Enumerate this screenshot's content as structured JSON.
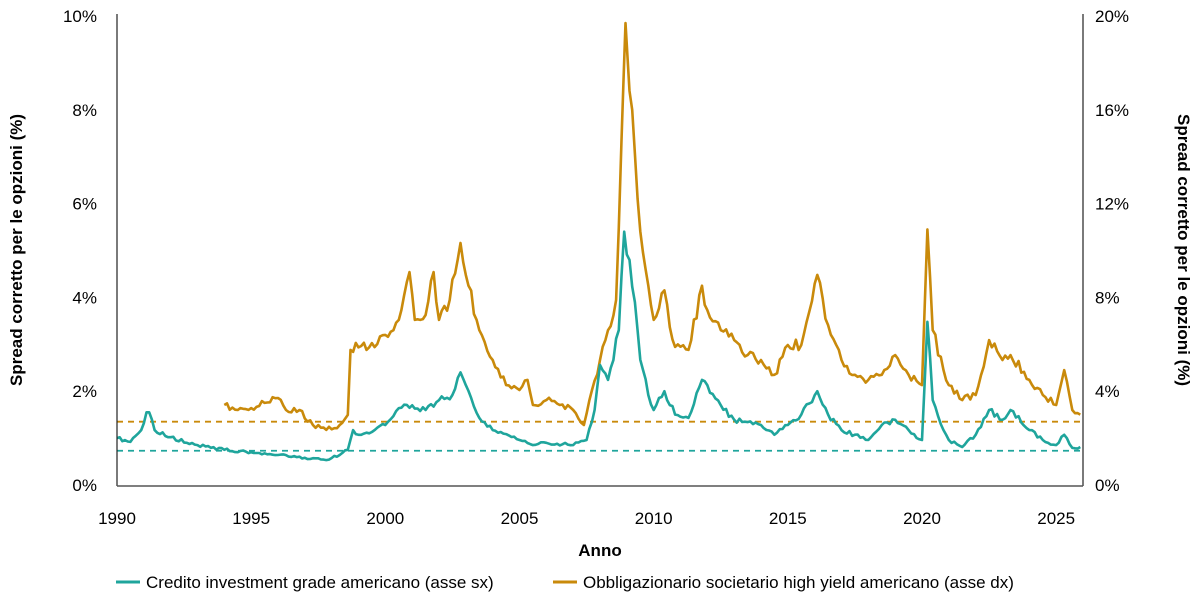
{
  "chart_data": {
    "type": "line",
    "xlabel": "Anno",
    "ylabel_left": "Spread corretto per le opzioni (%)",
    "ylabel_right": "Spread corretto per le opzioni (%)",
    "xlim": [
      1990,
      2026
    ],
    "ylim_left": [
      0,
      10
    ],
    "ylim_right": [
      0,
      20
    ],
    "x_ticks": [
      "1990",
      "1995",
      "2000",
      "2005",
      "2010",
      "2015",
      "2020",
      "2025"
    ],
    "y_ticks_left": [
      "0%",
      "2%",
      "4%",
      "6%",
      "8%",
      "10%"
    ],
    "y_ticks_right": [
      "0%",
      "4%",
      "8%",
      "12%",
      "16%",
      "20%"
    ],
    "grid": false,
    "legend_position": "bottom",
    "series": [
      {
        "name": "Credito investment grade americano (asse sx)",
        "axis": "left",
        "color": "#1fa59c",
        "reference_dashed": 0.73,
        "x": [
          1990.0,
          1990.5,
          1990.9,
          1991.1,
          1991.2,
          1991.4,
          1992,
          1993,
          1994,
          1995,
          1996,
          1997,
          1997.8,
          1998.3,
          1998.6,
          1998.8,
          1999,
          1999.5,
          2000,
          2000.5,
          2001,
          2001.5,
          2002,
          2002.5,
          2002.8,
          2003,
          2003.5,
          2004,
          2005,
          2005.5,
          2006,
          2007,
          2007.5,
          2007.8,
          2008,
          2008.3,
          2008.7,
          2008.9,
          2009.1,
          2009.3,
          2009.5,
          2009.8,
          2010,
          2010.4,
          2010.8,
          2011.3,
          2011.8,
          2012,
          2012.5,
          2013,
          2014,
          2014.5,
          2015,
          2015.5,
          2016.1,
          2016.5,
          2017,
          2018,
          2018.5,
          2019,
          2019.5,
          2020,
          2020.2,
          2020.4,
          2020.8,
          2021,
          2021.5,
          2022,
          2022.5,
          2023,
          2023.3,
          2024,
          2024.5,
          2025,
          2025.3,
          2025.6,
          2025.9
        ],
        "y": [
          1.0,
          0.92,
          1.17,
          1.55,
          1.55,
          1.17,
          1.02,
          0.85,
          0.75,
          0.7,
          0.64,
          0.58,
          0.53,
          0.64,
          0.75,
          1.17,
          1.07,
          1.13,
          1.28,
          1.64,
          1.7,
          1.6,
          1.81,
          1.92,
          2.4,
          2.13,
          1.43,
          1.17,
          0.96,
          0.85,
          0.9,
          0.85,
          0.96,
          1.6,
          2.56,
          2.24,
          3.3,
          5.4,
          4.8,
          3.9,
          2.67,
          1.92,
          1.6,
          2.0,
          1.5,
          1.43,
          2.24,
          2.13,
          1.7,
          1.39,
          1.28,
          1.07,
          1.28,
          1.5,
          2.0,
          1.5,
          1.17,
          0.96,
          1.28,
          1.39,
          1.17,
          0.96,
          3.48,
          1.81,
          1.17,
          0.96,
          0.81,
          1.07,
          1.6,
          1.39,
          1.6,
          1.17,
          0.96,
          0.85,
          1.07,
          0.79,
          0.81
        ]
      },
      {
        "name": "Obbligazionario societario high yield americano (asse dx)",
        "axis": "right",
        "color": "#c98a0b",
        "reference_dashed": 2.7,
        "x": [
          1994.0,
          1994.5,
          1995,
          1995.5,
          1996,
          1996.3,
          1996.8,
          1997.3,
          1997.8,
          1998.3,
          1998.6,
          1998.7,
          1998.9,
          1999.3,
          1999.6,
          2000,
          2000.5,
          2000.9,
          2001.1,
          2001.5,
          2001.8,
          2002.0,
          2002.4,
          2002.8,
          2003.0,
          2003.5,
          2004,
          2004.5,
          2005,
          2005.3,
          2005.5,
          2006,
          2006.5,
          2007,
          2007.4,
          2007.7,
          2008,
          2008.3,
          2008.6,
          2008.8,
          2008.95,
          2009.1,
          2009.2,
          2009.4,
          2009.7,
          2010,
          2010.4,
          2010.7,
          2011.3,
          2011.8,
          2012,
          2012.5,
          2013,
          2013.5,
          2014,
          2014.5,
          2015,
          2015.5,
          2016.1,
          2016.5,
          2017,
          2017.5,
          2018,
          2018.5,
          2019,
          2019.5,
          2020,
          2020.2,
          2020.4,
          2020.8,
          2021,
          2021.5,
          2022,
          2022.5,
          2023,
          2023.3,
          2024,
          2024.5,
          2025,
          2025.3,
          2025.6,
          2025.9
        ],
        "y": [
          3.41,
          3.2,
          3.28,
          3.5,
          3.71,
          3.2,
          3.2,
          2.56,
          2.35,
          2.56,
          2.99,
          5.76,
          6.06,
          5.76,
          5.88,
          6.4,
          7.04,
          9.08,
          7.04,
          7.25,
          9.08,
          7.04,
          7.89,
          10.32,
          8.96,
          6.6,
          5.33,
          4.26,
          4.05,
          4.48,
          3.41,
          3.62,
          3.41,
          3.2,
          2.56,
          4.05,
          5.33,
          6.6,
          7.89,
          14.7,
          19.7,
          16.8,
          16.0,
          12.2,
          9.2,
          7.04,
          8.3,
          6.2,
          5.76,
          8.5,
          7.46,
          6.6,
          6.18,
          5.54,
          5.33,
          4.7,
          5.97,
          5.97,
          8.96,
          6.82,
          5.33,
          4.7,
          4.48,
          4.7,
          5.54,
          4.7,
          4.26,
          10.9,
          6.6,
          4.9,
          4.26,
          3.62,
          3.84,
          6.18,
          5.33,
          5.54,
          4.48,
          3.84,
          3.41,
          4.9,
          3.2,
          3.0
        ]
      }
    ]
  }
}
